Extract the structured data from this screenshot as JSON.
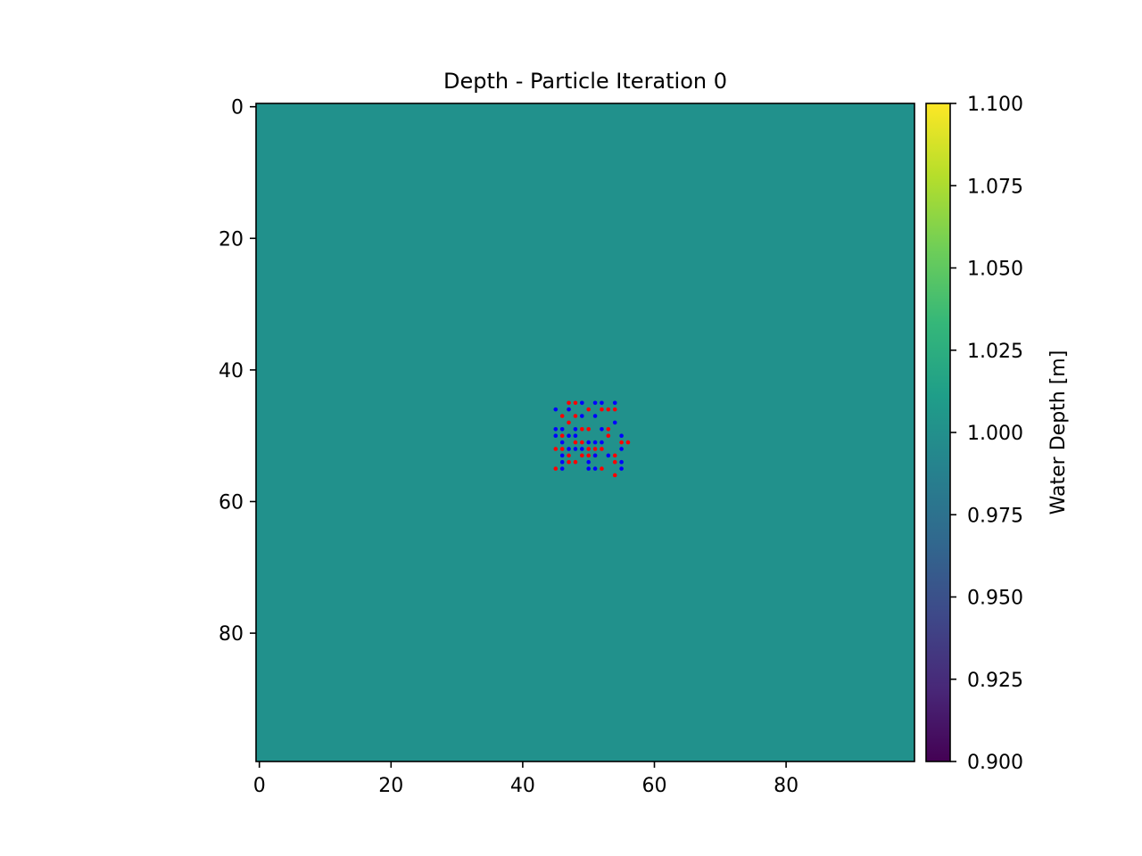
{
  "chart_data": {
    "type": "heatmap",
    "title": "Depth - Particle Iteration 0",
    "xlabel": "",
    "ylabel": "",
    "xlim": [
      -0.5,
      99.5
    ],
    "ylim": [
      99.5,
      -0.5
    ],
    "x_ticks": [
      0,
      20,
      40,
      60,
      80
    ],
    "y_ticks": [
      0,
      20,
      40,
      60,
      80
    ],
    "field_value": 1.0,
    "field_color": "#21918c",
    "colorbar": {
      "label": "Water Depth [m]",
      "range": [
        0.9,
        1.1
      ],
      "ticks": [
        "0.900",
        "0.925",
        "0.950",
        "0.975",
        "1.000",
        "1.025",
        "1.050",
        "1.075",
        "1.100"
      ],
      "colormap": "viridis",
      "stops": [
        "#440154",
        "#482878",
        "#3e4989",
        "#31688e",
        "#26828e",
        "#1f9e89",
        "#35b779",
        "#6ece58",
        "#b5de2b",
        "#fde725"
      ]
    },
    "series": [
      {
        "color": "#ff0000",
        "points": [
          [
            47,
            45
          ],
          [
            48,
            45
          ],
          [
            46,
            47
          ],
          [
            47,
            46
          ],
          [
            48,
            47
          ],
          [
            50,
            46
          ],
          [
            52,
            46
          ],
          [
            53,
            46
          ],
          [
            54,
            46
          ],
          [
            47,
            48
          ],
          [
            46,
            50
          ],
          [
            49,
            49
          ],
          [
            50,
            49
          ],
          [
            53,
            49
          ],
          [
            53,
            50
          ],
          [
            45,
            52
          ],
          [
            46,
            52
          ],
          [
            48,
            51
          ],
          [
            49,
            51
          ],
          [
            50,
            52
          ],
          [
            51,
            52
          ],
          [
            52,
            52
          ],
          [
            55,
            51
          ],
          [
            56,
            51
          ],
          [
            47,
            53
          ],
          [
            49,
            53
          ],
          [
            50,
            53
          ],
          [
            51,
            53
          ],
          [
            54,
            53
          ],
          [
            54,
            54
          ],
          [
            45,
            55
          ],
          [
            47,
            54
          ],
          [
            48,
            54
          ],
          [
            52,
            55
          ],
          [
            54,
            56
          ]
        ]
      },
      {
        "color": "#0000ff",
        "points": [
          [
            45,
            46
          ],
          [
            49,
            45
          ],
          [
            51,
            45
          ],
          [
            52,
            45
          ],
          [
            54,
            45
          ],
          [
            47,
            46
          ],
          [
            49,
            47
          ],
          [
            51,
            47
          ],
          [
            54,
            48
          ],
          [
            45,
            49
          ],
          [
            46,
            49
          ],
          [
            48,
            49
          ],
          [
            52,
            49
          ],
          [
            45,
            50
          ],
          [
            47,
            50
          ],
          [
            48,
            50
          ],
          [
            55,
            50
          ],
          [
            46,
            51
          ],
          [
            50,
            51
          ],
          [
            52,
            51
          ],
          [
            47,
            52
          ],
          [
            49,
            52
          ],
          [
            51,
            51
          ],
          [
            55,
            52
          ],
          [
            46,
            53
          ],
          [
            48,
            52
          ],
          [
            51,
            53
          ],
          [
            53,
            53
          ],
          [
            46,
            54
          ],
          [
            50,
            54
          ],
          [
            55,
            54
          ],
          [
            46,
            55
          ],
          [
            50,
            55
          ],
          [
            51,
            55
          ],
          [
            55,
            55
          ]
        ]
      }
    ]
  }
}
